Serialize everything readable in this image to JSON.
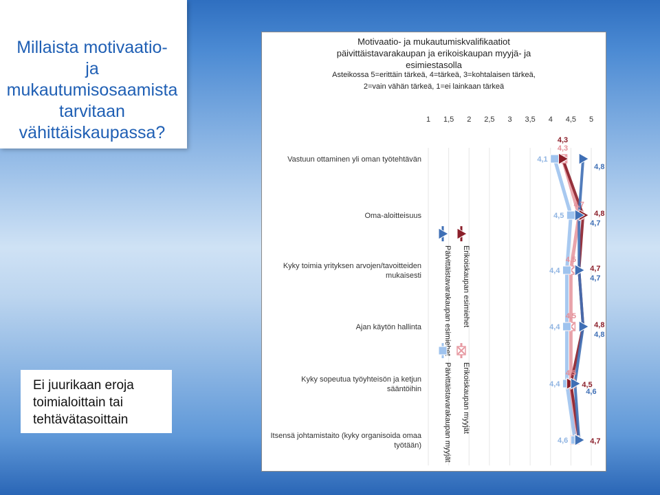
{
  "left_title_lines": [
    "Millaista motivaatio-",
    "ja",
    "mukautumisosaamista",
    "tarvitaan",
    "vähittäiskaupassa?"
  ],
  "note_lines": [
    "Ei juurikaan eroja",
    "toimialoittain tai",
    "tehtävätasoittain"
  ],
  "colors": {
    "paivittaistavarakaupan_esimiehet": "#3f6fb5",
    "erikoiskaupan_esimiehet": "#8b1f2a",
    "paivittaistavarakaupan_myyjat": "#9fc3ee",
    "erikoiskaupan_myyjat": "#e79aa2"
  },
  "chart_data": {
    "type": "line",
    "orientation": "horizontal",
    "title_lines": [
      "Motivaatio- ja mukautumiskvalifikaatiot",
      "päivittäistavarakaupan ja erikoiskaupan myyjä- ja",
      "esimiestasolla"
    ],
    "subtitle_lines": [
      "Asteikossa 5=erittäin tärkeä, 4=tärkeä, 3=kohtalaisen tärkeä,",
      "2=vain vähän tärkeä, 1=ei lainkaan tärkeä"
    ],
    "xlim": [
      1,
      5
    ],
    "x_ticks": [
      "1",
      "1,5",
      "2",
      "2,5",
      "3",
      "3,5",
      "4",
      "4,5",
      "5"
    ],
    "categories": [
      "Vastuun ottaminen yli oman työtehtävän",
      "Oma-aloitteisuus",
      "Kyky toimia yrityksen arvojen/tavoitteiden mukaisesti",
      "Ajan käytön hallinta",
      "Kyky sopeutua työyhteisön ja ketjun sääntöihin",
      "Itsensä johtamistaito (kyky organisoida omaa työtään)"
    ],
    "category_label_lines": [
      [
        "Vastuun ottaminen yli oman työtehtävän"
      ],
      [
        "Oma-aloitteisuus"
      ],
      [
        "Kyky toimia yrityksen arvojen/tavoitteiden",
        "mukaisesti"
      ],
      [
        "Ajan käytön hallinta"
      ],
      [
        "Kyky sopeutua työyhteisön ja ketjun",
        "sääntöihin"
      ],
      [
        "Itsensä johtamistaito (kyky organisoida omaa",
        "työtään)"
      ]
    ],
    "series": [
      {
        "name": "Päivittäistavarakaupan esimiehet",
        "marker": "triangle",
        "values": [
          4.8,
          4.7,
          4.7,
          4.8,
          4.6,
          4.7
        ],
        "labels": [
          "4,8",
          "4,7",
          "4,7",
          "4,8",
          "4,6",
          ""
        ]
      },
      {
        "name": "Erikoiskaupan esimiehet",
        "marker": "triangle",
        "values": [
          4.3,
          4.8,
          4.7,
          4.8,
          4.5,
          4.7
        ],
        "labels": [
          "4,3",
          "4,8",
          "4,7",
          "4,8",
          "4,5",
          "4,7"
        ]
      },
      {
        "name": "Päivittäistavarakaupan myyjät",
        "marker": "square",
        "values": [
          4.1,
          4.5,
          4.4,
          4.4,
          4.4,
          4.6
        ],
        "labels": [
          "4,1",
          "4,5",
          "4,4",
          "4,4",
          "4,4",
          "4,6"
        ]
      },
      {
        "name": "Erikoiskaupan myyjät",
        "marker": "cross",
        "values": [
          4.3,
          4.7,
          4.5,
          4.5,
          4.5,
          4.6
        ],
        "labels": [
          "4,3",
          "4,7",
          "4,5",
          "4,5",
          "4,5",
          ""
        ]
      }
    ],
    "legend_groups": [
      {
        "position": "middle",
        "entries": [
          "Päivittäistavarakaupan esimiehet",
          "Erikoiskaupan esimiehet"
        ]
      },
      {
        "position": "bottom",
        "entries": [
          "Päivittäistavarakaupan myyjät",
          "Erikoiskaupan myyjät"
        ]
      }
    ]
  }
}
